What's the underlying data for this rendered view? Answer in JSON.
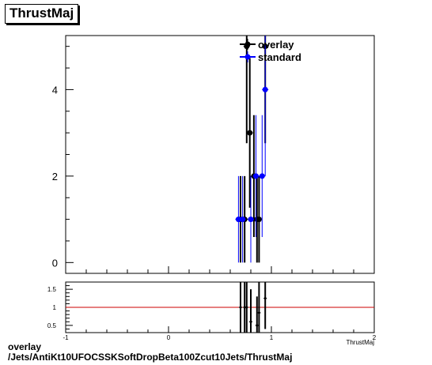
{
  "title": "ThrustMaj",
  "footer": {
    "line1": "overlay",
    "line2": "/Jets/AntiKt10UFOCSSKSoftDropBeta100Zcut10Jets/ThrustMaj"
  },
  "chart_data": [
    {
      "type": "scatter",
      "panel": "main",
      "xlim": [
        -1,
        2
      ],
      "ylim": [
        -0.25,
        5.25
      ],
      "yticks": [
        0,
        2,
        4
      ],
      "legend": {
        "position": "top-right",
        "entries": [
          "overlay",
          "standard"
        ]
      },
      "series": [
        {
          "name": "overlay",
          "color": "#000000",
          "x": [
            0.7,
            0.74,
            0.76,
            0.79,
            0.83,
            0.86,
            0.88,
            0.94
          ],
          "y": [
            1,
            1,
            5,
            3,
            2,
            1,
            1,
            5
          ],
          "err": [
            1.0,
            1.0,
            2.24,
            1.73,
            1.41,
            1.0,
            1.0,
            2.24
          ]
        },
        {
          "name": "standard",
          "color": "#0000ff",
          "x": [
            0.68,
            0.72,
            0.8,
            0.85,
            0.91,
            0.94
          ],
          "y": [
            1,
            1,
            1,
            2,
            2,
            4
          ],
          "err": [
            1.0,
            1.0,
            1.0,
            1.41,
            1.41,
            2.0
          ]
        }
      ]
    },
    {
      "type": "scatter",
      "panel": "ratio",
      "xlim": [
        -1,
        2
      ],
      "ylim": [
        0.3,
        1.7
      ],
      "yticks": [
        0.5,
        1,
        1.5
      ],
      "xticks": [
        -1,
        0,
        1,
        2
      ],
      "xlabel": "ThrustMaj",
      "reference_line": {
        "y": 1,
        "color": "#cc0000"
      },
      "series": [
        {
          "name": "ratio",
          "color": "#000000",
          "x": [
            0.7,
            0.74,
            0.76,
            0.8,
            0.86,
            0.88,
            0.94
          ],
          "y": [
            1.0,
            1.0,
            1.0,
            0.6,
            0.5,
            0.85,
            1.25
          ],
          "err": [
            1.4,
            1.4,
            1.2,
            0.9,
            0.8,
            1.0,
            0.85
          ]
        }
      ]
    }
  ]
}
